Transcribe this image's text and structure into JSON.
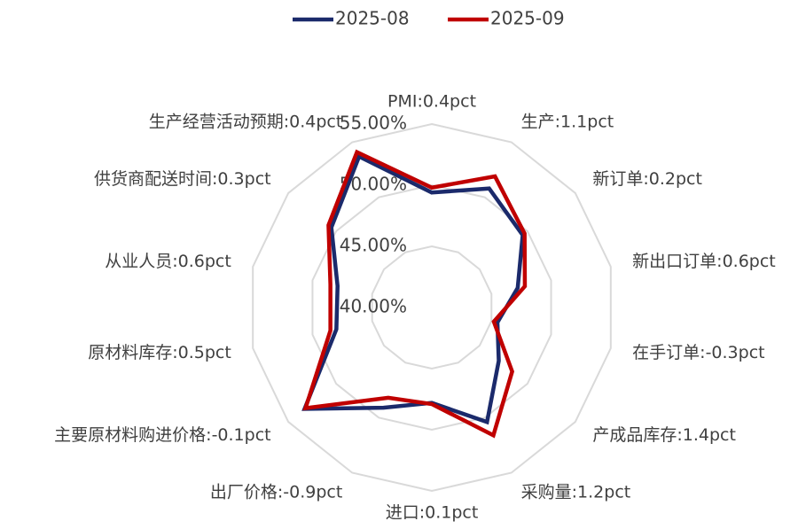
{
  "chart_data": {
    "type": "radar",
    "categories": [
      "PMI:0.4pct",
      "生产:1.1pct",
      "新订单:0.2pct",
      "新出口订单:0.6pct",
      "在手订单:-0.3pct",
      "产成品库存:1.4pct",
      "采购量:1.2pct",
      "进口:0.1pct",
      "出厂价格:-0.9pct",
      "主要原材料购进价格:-0.1pct",
      "原材料库存:0.5pct",
      "从业人员:0.6pct",
      "供货商配送时间:0.3pct",
      "生产经营活动预期:0.4pct"
    ],
    "series": [
      {
        "name": "2025-08",
        "color": "#1b2a6b",
        "values": [
          49.4,
          50.8,
          49.5,
          47.2,
          45.5,
          47.0,
          50.4,
          47.8,
          49.1,
          53.3,
          48.0,
          47.9,
          50.5,
          53.7
        ]
      },
      {
        "name": "2025-09",
        "color": "#c00000",
        "values": [
          49.8,
          51.9,
          49.7,
          47.8,
          45.2,
          48.4,
          51.6,
          47.9,
          48.2,
          53.2,
          48.5,
          48.5,
          50.8,
          54.1
        ]
      }
    ],
    "rlim": [
      40,
      55
    ],
    "rticks": [
      {
        "value": 40,
        "label": "40.00%"
      },
      {
        "value": 45,
        "label": "45.00%"
      },
      {
        "value": 50,
        "label": "50.00%"
      },
      {
        "value": 55,
        "label": "55.00%"
      }
    ],
    "grid": true,
    "legend": "top"
  }
}
